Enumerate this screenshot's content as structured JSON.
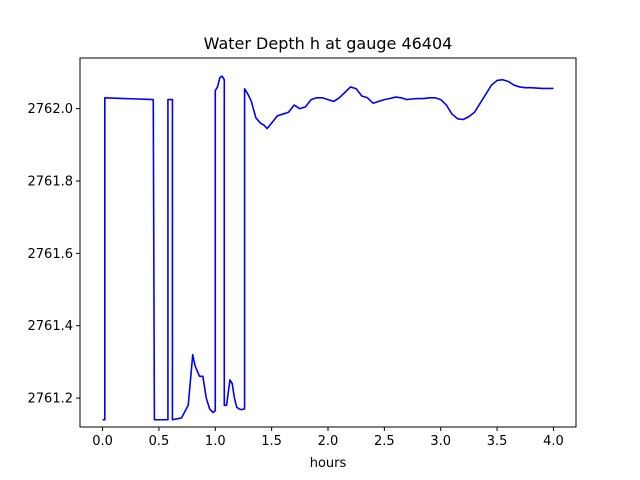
{
  "chart_data": {
    "type": "line",
    "title": "Water Depth h at gauge 46404",
    "xlabel": "hours",
    "ylabel": "",
    "xlim": [
      -0.2,
      4.2
    ],
    "ylim": [
      2761.12,
      2762.14
    ],
    "xticks": [
      0.0,
      0.5,
      1.0,
      1.5,
      2.0,
      2.5,
      3.0,
      3.5,
      4.0
    ],
    "xtick_labels": [
      "0.0",
      "0.5",
      "1.0",
      "1.5",
      "2.0",
      "2.5",
      "3.0",
      "3.5",
      "4.0"
    ],
    "yticks": [
      2761.2,
      2761.4,
      2761.6,
      2761.8,
      2762.0
    ],
    "ytick_labels": [
      "2761.2",
      "2761.4",
      "2761.6",
      "2761.8",
      "2762.0"
    ],
    "grid": false,
    "series": [
      {
        "color": "#0000ff",
        "x": [
          0.0,
          0.02,
          0.02,
          0.45,
          0.46,
          0.58,
          0.58,
          0.62,
          0.62,
          0.7,
          0.76,
          0.8,
          0.82,
          0.86,
          0.89,
          0.92,
          0.95,
          0.98,
          1.0,
          1.0,
          1.02,
          1.04,
          1.06,
          1.08,
          1.08,
          1.1,
          1.13,
          1.15,
          1.17,
          1.19,
          1.21,
          1.23,
          1.26,
          1.26,
          1.29,
          1.32,
          1.36,
          1.4,
          1.43,
          1.46,
          1.5,
          1.55,
          1.6,
          1.65,
          1.7,
          1.75,
          1.8,
          1.85,
          1.9,
          1.95,
          2.0,
          2.05,
          2.1,
          2.15,
          2.2,
          2.25,
          2.3,
          2.35,
          2.4,
          2.45,
          2.5,
          2.55,
          2.6,
          2.65,
          2.7,
          2.75,
          2.8,
          2.85,
          2.9,
          2.95,
          3.0,
          3.05,
          3.1,
          3.15,
          3.2,
          3.25,
          3.3,
          3.35,
          3.4,
          3.45,
          3.5,
          3.55,
          3.6,
          3.65,
          3.7,
          3.75,
          3.8,
          3.85,
          3.9,
          3.95,
          4.0
        ],
        "y": [
          2761.14,
          2761.14,
          2762.03,
          2762.025,
          2761.14,
          2761.14,
          2762.025,
          2762.025,
          2761.14,
          2761.145,
          2761.18,
          2761.32,
          2761.29,
          2761.26,
          2761.26,
          2761.2,
          2761.17,
          2761.16,
          2761.165,
          2762.05,
          2762.06,
          2762.085,
          2762.09,
          2762.08,
          2761.18,
          2761.18,
          2761.25,
          2761.24,
          2761.2,
          2761.175,
          2761.17,
          2761.168,
          2761.17,
          2762.055,
          2762.04,
          2762.02,
          2761.975,
          2761.96,
          2761.955,
          2761.945,
          2761.96,
          2761.98,
          2761.985,
          2761.99,
          2762.01,
          2762.0,
          2762.005,
          2762.025,
          2762.03,
          2762.03,
          2762.025,
          2762.02,
          2762.03,
          2762.045,
          2762.06,
          2762.055,
          2762.035,
          2762.03,
          2762.015,
          2762.02,
          2762.025,
          2762.028,
          2762.032,
          2762.03,
          2762.025,
          2762.027,
          2762.028,
          2762.028,
          2762.03,
          2762.03,
          2762.025,
          2762.01,
          2761.985,
          2761.972,
          2761.97,
          2761.978,
          2761.99,
          2762.015,
          2762.04,
          2762.065,
          2762.078,
          2762.08,
          2762.075,
          2762.065,
          2762.06,
          2762.058,
          2762.058,
          2762.057,
          2762.056,
          2762.056,
          2762.056
        ]
      }
    ]
  }
}
